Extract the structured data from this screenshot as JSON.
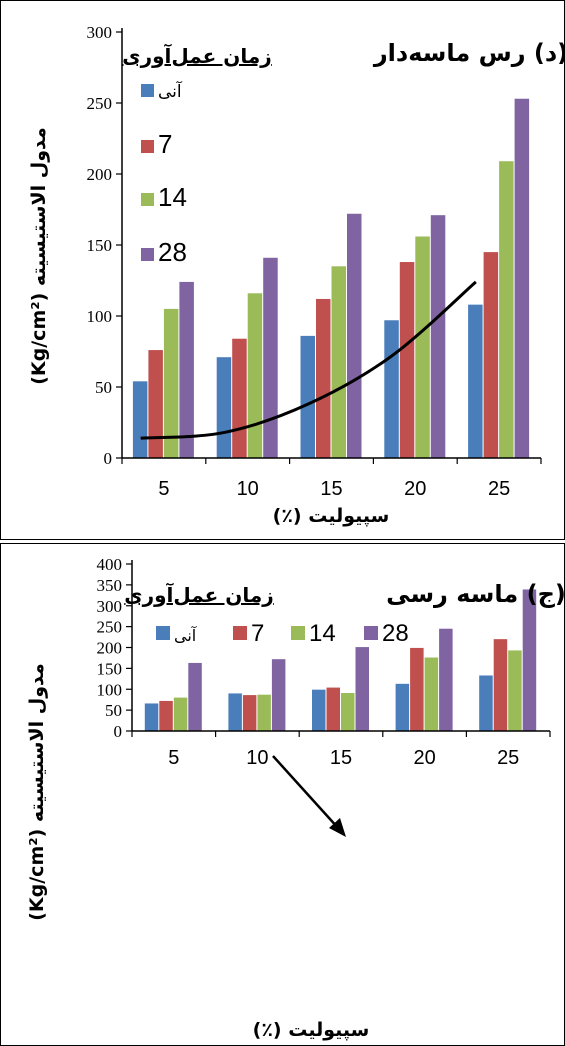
{
  "colors": {
    "series": [
      "#4a7ebb",
      "#c0504d",
      "#9bbb59",
      "#8064a2"
    ],
    "trend": "#000000",
    "arrow": "#000000"
  },
  "chart_data": [
    {
      "type": "bar",
      "title": "(د) رس ماسه‌دار",
      "legend_title": "زمان عمل‌آوری",
      "xlabel": "سپیولیت (٪)",
      "ylabel": "مدول الاستیسیته (Kg/cm²)",
      "categories": [
        "5",
        "10",
        "15",
        "20",
        "25"
      ],
      "ylim": [
        0,
        300
      ],
      "yticks": [
        "0",
        "50",
        "100",
        "150",
        "200",
        "250",
        "300"
      ],
      "legend_placement": "top-left",
      "grid": false,
      "series": [
        {
          "name": "آنی",
          "values": [
            54,
            71,
            86,
            97,
            108
          ]
        },
        {
          "name": "7",
          "values": [
            76,
            84,
            112,
            138,
            145
          ]
        },
        {
          "name": "14",
          "values": [
            105,
            116,
            135,
            156,
            209
          ]
        },
        {
          "name": "28",
          "values": [
            124,
            141,
            172,
            171,
            253
          ]
        }
      ],
      "trendline": {
        "x": [
          "5",
          "10",
          "15",
          "20",
          "25"
        ],
        "y": [
          14,
          18,
          38,
          72,
          124
        ]
      }
    },
    {
      "type": "bar",
      "title": "(ج) ماسه رسی",
      "legend_title": "زمان عمل‌آوری",
      "xlabel": "سپیولیت (٪)",
      "ylabel": "مدول الاستیسیته (Kg/cm²)",
      "categories": [
        "5",
        "10",
        "15",
        "20",
        "25"
      ],
      "ylim": [
        0,
        400
      ],
      "yticks": [
        "0",
        "50",
        "100",
        "150",
        "200",
        "250",
        "300",
        "350",
        "400"
      ],
      "legend_placement": "top",
      "grid": false,
      "series": [
        {
          "name": "آنی",
          "values": [
            66,
            90,
            99,
            113,
            133
          ]
        },
        {
          "name": "7",
          "values": [
            72,
            86,
            104,
            199,
            220
          ]
        },
        {
          "name": "14",
          "values": [
            80,
            87,
            91,
            176,
            193
          ]
        },
        {
          "name": "28",
          "values": [
            163,
            172,
            201,
            245,
            339
          ]
        }
      ],
      "annotation": {
        "type": "arrow",
        "points_to": "15"
      }
    }
  ]
}
